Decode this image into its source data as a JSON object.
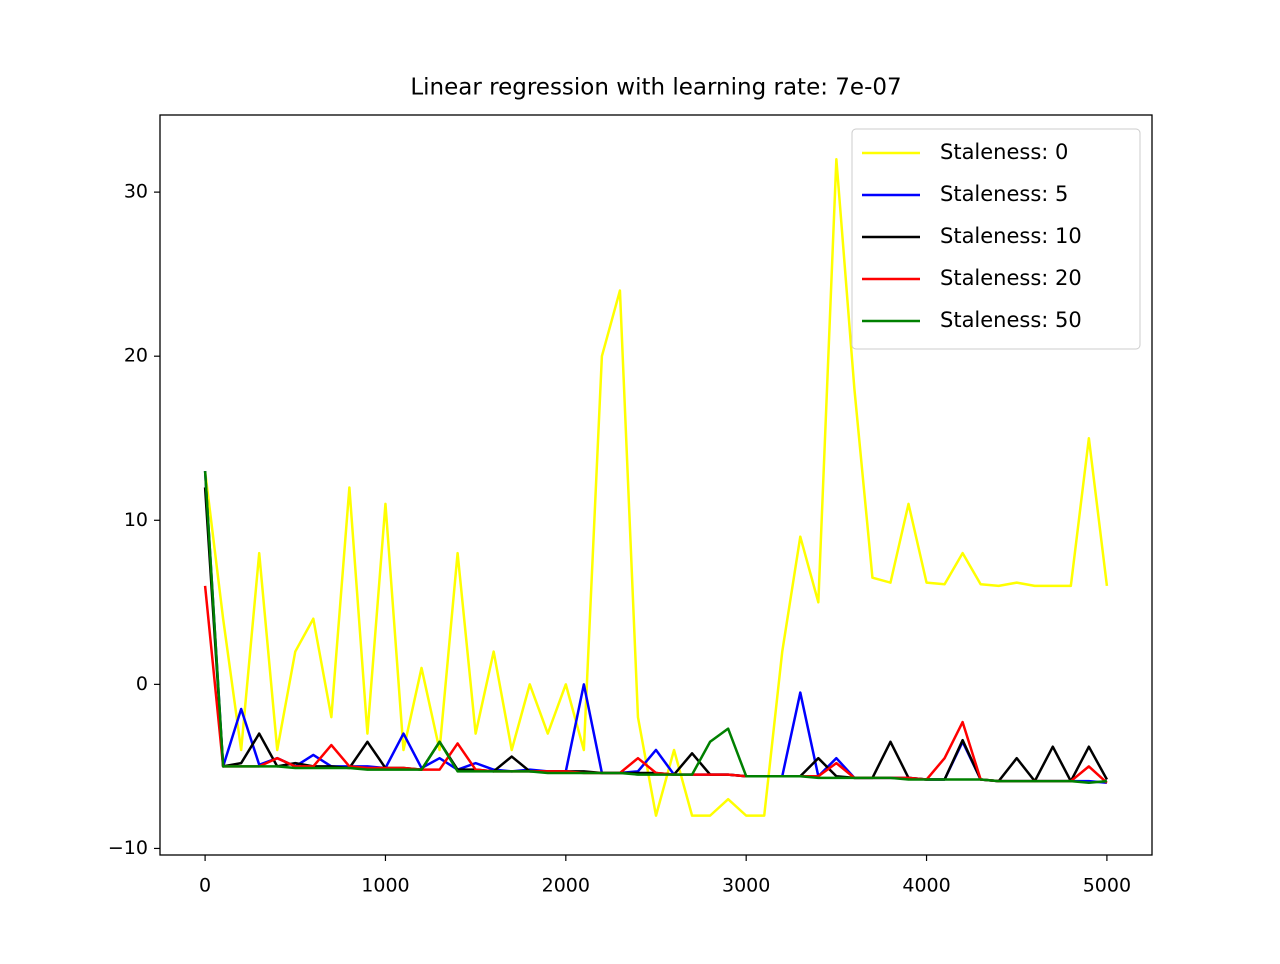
{
  "chart_data": {
    "type": "line",
    "title": "Linear regression with learning rate: 7e-07",
    "x": [
      0,
      100,
      200,
      300,
      400,
      500,
      600,
      700,
      800,
      900,
      1000,
      1100,
      1200,
      1300,
      1400,
      1500,
      1600,
      1700,
      1800,
      1900,
      2000,
      2100,
      2200,
      2300,
      2400,
      2500,
      2600,
      2700,
      2800,
      2900,
      3000,
      3100,
      3200,
      3300,
      3400,
      3500,
      3600,
      3700,
      3800,
      3900,
      4000,
      4100,
      4200,
      4300,
      4400,
      4500,
      4600,
      4700,
      4800,
      4900,
      5000
    ],
    "series": [
      {
        "name": "Staleness: 0",
        "color": "#ffff00",
        "values": [
          13,
          4,
          -4,
          8,
          -4,
          2,
          4,
          -2,
          12,
          -3,
          11,
          -4,
          1,
          -4,
          8,
          -3,
          2,
          -4,
          0,
          -3,
          0,
          -4,
          20,
          24,
          -2,
          -8,
          -4,
          -8,
          -8,
          -7,
          -8,
          -8,
          2,
          9,
          5,
          32,
          18,
          6.5,
          6.2,
          11,
          6.2,
          6.1,
          8,
          6.1,
          6,
          6.2,
          6,
          6,
          6,
          15,
          6
        ]
      },
      {
        "name": "Staleness: 5",
        "color": "#0000ff",
        "values": [
          13,
          -5,
          -1.5,
          -4.9,
          -4.5,
          -5,
          -4.3,
          -5,
          -5,
          -5,
          -5.1,
          -3,
          -5.1,
          -4.5,
          -5.2,
          -4.8,
          -5.2,
          -5.3,
          -5.2,
          -5.3,
          -5.3,
          0,
          -5.4,
          -5.4,
          -5.3,
          -4,
          -5.5,
          -5.5,
          -5.5,
          -5.5,
          -5.6,
          -5.6,
          -5.6,
          -0.5,
          -5.6,
          -4.5,
          -5.7,
          -5.7,
          -5.7,
          -5.7,
          -5.8,
          -5.8,
          -3.5,
          -5.8,
          -5.9,
          -5.9,
          -5.9,
          -5.9,
          -5.9,
          -5.9,
          -6
        ]
      },
      {
        "name": "Staleness: 10",
        "color": "#000000",
        "values": [
          12,
          -5,
          -4.8,
          -3,
          -5,
          -4.8,
          -5,
          -5,
          -5.1,
          -3.5,
          -5.1,
          -5.1,
          -5.2,
          -3.5,
          -5.2,
          -5.2,
          -5.3,
          -4.4,
          -5.3,
          -5.3,
          -5.3,
          -5.3,
          -5.4,
          -5.4,
          -5.4,
          -5.4,
          -5.5,
          -4.2,
          -5.5,
          -5.5,
          -5.6,
          -5.6,
          -5.6,
          -5.6,
          -4.5,
          -5.6,
          -5.7,
          -5.7,
          -3.5,
          -5.7,
          -5.8,
          -5.8,
          -3.4,
          -5.8,
          -5.9,
          -4.5,
          -5.9,
          -3.8,
          -5.9,
          -3.8,
          -5.8
        ]
      },
      {
        "name": "Staleness: 20",
        "color": "#ff0000",
        "values": [
          6,
          -5,
          -5,
          -5,
          -4.5,
          -5,
          -5,
          -3.7,
          -5,
          -5.1,
          -5.1,
          -5.1,
          -5.2,
          -5.2,
          -3.6,
          -5.2,
          -5.3,
          -5.3,
          -5.3,
          -5.3,
          -5.3,
          -5.4,
          -5.4,
          -5.4,
          -4.5,
          -5.4,
          -5.5,
          -5.5,
          -5.5,
          -5.5,
          -5.6,
          -5.6,
          -5.6,
          -5.6,
          -5.6,
          -4.8,
          -5.7,
          -5.7,
          -5.7,
          -5.7,
          -5.8,
          -4.5,
          -2.3,
          -5.8,
          -5.9,
          -5.9,
          -5.9,
          -5.9,
          -5.9,
          -5,
          -6
        ]
      },
      {
        "name": "Staleness: 50",
        "color": "#008000",
        "values": [
          13,
          -5,
          -5,
          -5,
          -5,
          -5.1,
          -5.1,
          -5.1,
          -5.1,
          -5.2,
          -5.2,
          -5.2,
          -5.2,
          -3.5,
          -5.3,
          -5.3,
          -5.3,
          -5.3,
          -5.3,
          -5.4,
          -5.4,
          -5.4,
          -5.4,
          -5.4,
          -5.5,
          -5.5,
          -5.5,
          -5.5,
          -3.5,
          -2.7,
          -5.6,
          -5.6,
          -5.6,
          -5.6,
          -5.7,
          -5.7,
          -5.7,
          -5.7,
          -5.7,
          -5.8,
          -5.8,
          -5.8,
          -5.8,
          -5.8,
          -5.9,
          -5.9,
          -5.9,
          -5.9,
          -5.9,
          -6,
          -5.9
        ]
      }
    ],
    "xlim": [
      -250,
      5250
    ],
    "ylim": [
      -10.4,
      34.7
    ],
    "xticks": [
      0,
      1000,
      2000,
      3000,
      4000,
      5000
    ],
    "yticks": [
      {
        "value": -10,
        "label": "−10"
      },
      0,
      10,
      20,
      30
    ],
    "legend": "upper right"
  }
}
